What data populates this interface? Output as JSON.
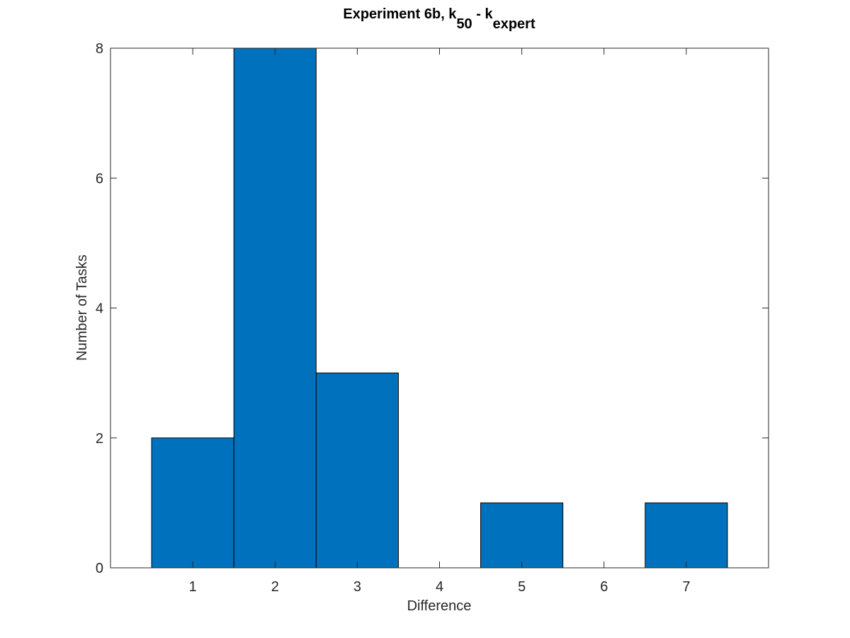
{
  "chart_data": {
    "type": "bar",
    "title": {
      "main": "Experiment 6b, k",
      "sub1": "50",
      "mid": " - k",
      "sub2": "expert"
    },
    "xlabel": "Difference",
    "ylabel": "Number of Tasks",
    "categories": [
      "1",
      "2",
      "3",
      "4",
      "5",
      "6",
      "7"
    ],
    "x": [
      1,
      2,
      3,
      4,
      5,
      6,
      7
    ],
    "values": [
      2,
      8,
      3,
      0,
      1,
      0,
      1
    ],
    "bar_width": 1,
    "xlim": [
      0,
      8
    ],
    "ylim": [
      0,
      8
    ],
    "yticks": [
      0,
      2,
      4,
      6,
      8
    ],
    "grid": false,
    "legend": "none",
    "colors": {
      "bar_fill": "#0072bd",
      "bar_edge": "#000000",
      "axis": "#262626",
      "text": "#262626",
      "title": "#000000"
    }
  }
}
